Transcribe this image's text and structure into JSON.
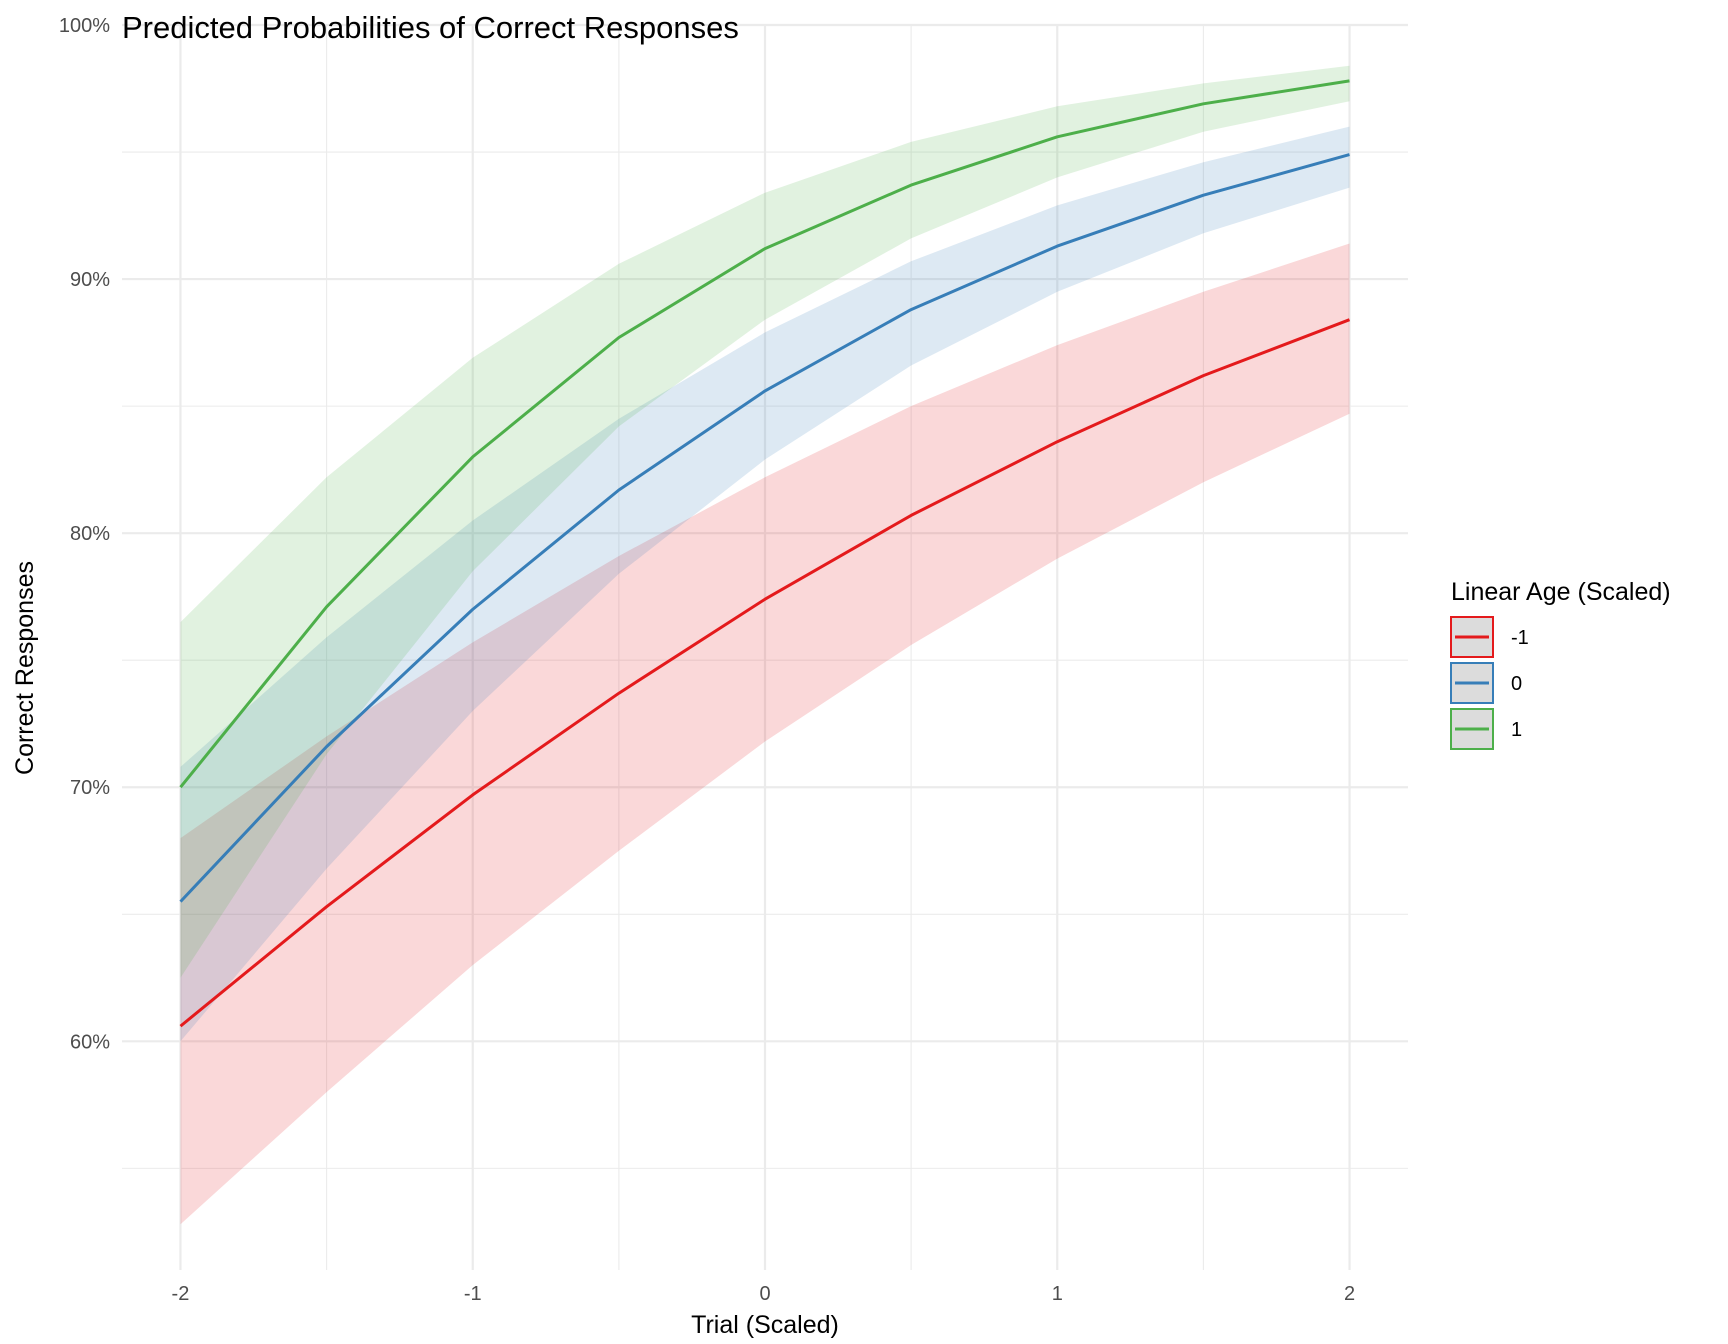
{
  "chart_data": {
    "type": "line",
    "title": "Predicted Probabilities of Correct Responses",
    "xlabel": "Trial (Scaled)",
    "ylabel": "Correct Responses",
    "xlim": [
      -2.2,
      2.2
    ],
    "ylim": [
      0.51,
      1.0
    ],
    "x_ticks": [
      -2,
      -1,
      0,
      1,
      2
    ],
    "x_tick_labels": [
      "-2",
      "-1",
      "0",
      "1",
      "2"
    ],
    "x_minor_ticks": [
      -1.5,
      -0.5,
      0.5,
      1.5
    ],
    "y_ticks": [
      0.6,
      0.7,
      0.8,
      0.9,
      1.0
    ],
    "y_tick_labels": [
      "60%",
      "70%",
      "80%",
      "90%",
      "100%"
    ],
    "y_minor_ticks": [
      0.55,
      0.65,
      0.75,
      0.85,
      0.95
    ],
    "grid": true,
    "legend_title": "Linear Age (Scaled)",
    "legend_position": "right",
    "x": [
      -2,
      -1.5,
      -1,
      -0.5,
      0,
      0.5,
      1,
      1.5,
      2
    ],
    "series": [
      {
        "name": "-1",
        "color": "#E41A1C",
        "values": [
          0.606,
          0.653,
          0.697,
          0.737,
          0.774,
          0.807,
          0.836,
          0.862,
          0.884
        ],
        "lower": [
          0.528,
          0.58,
          0.63,
          0.675,
          0.718,
          0.756,
          0.79,
          0.82,
          0.847
        ],
        "upper": [
          0.68,
          0.72,
          0.757,
          0.791,
          0.822,
          0.85,
          0.874,
          0.895,
          0.914
        ]
      },
      {
        "name": "0",
        "color": "#377EB8",
        "values": [
          0.655,
          0.716,
          0.77,
          0.817,
          0.856,
          0.888,
          0.913,
          0.933,
          0.949
        ],
        "lower": [
          0.6,
          0.668,
          0.73,
          0.784,
          0.829,
          0.866,
          0.895,
          0.918,
          0.936
        ],
        "upper": [
          0.708,
          0.759,
          0.805,
          0.845,
          0.879,
          0.907,
          0.929,
          0.946,
          0.96
        ]
      },
      {
        "name": "1",
        "color": "#4DAF4A",
        "values": [
          0.7,
          0.771,
          0.83,
          0.877,
          0.912,
          0.937,
          0.956,
          0.969,
          0.978
        ],
        "lower": [
          0.625,
          0.713,
          0.785,
          0.842,
          0.884,
          0.916,
          0.94,
          0.958,
          0.97
        ],
        "upper": [
          0.765,
          0.822,
          0.869,
          0.906,
          0.934,
          0.954,
          0.968,
          0.977,
          0.984
        ]
      }
    ]
  }
}
